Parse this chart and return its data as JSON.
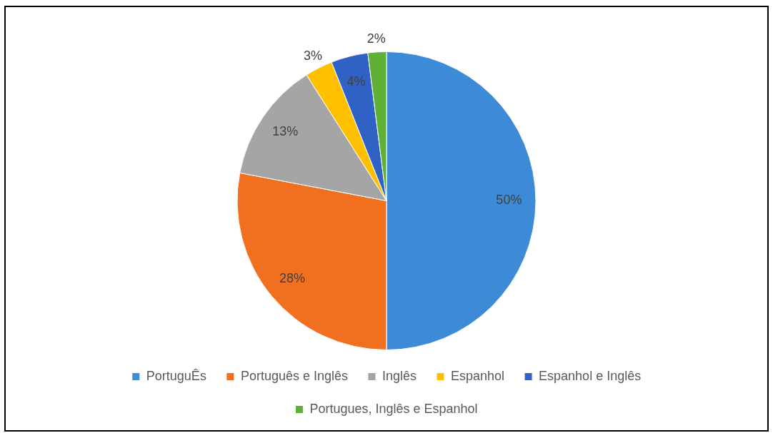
{
  "chart_data": {
    "type": "pie",
    "categories": [
      "PortuguÊs",
      "Português e Inglês",
      "Inglês",
      "Espanhol",
      "Espanhol e Inglês",
      "Portugues, Inglês e Espanhol"
    ],
    "values": [
      50,
      28,
      13,
      3,
      4,
      2
    ],
    "colors": [
      "#3d8ad6",
      "#f07020",
      "#a5a5a5",
      "#ffc000",
      "#2f62c4",
      "#5fb034"
    ],
    "value_labels": [
      "50%",
      "28%",
      "13%",
      "3%",
      "4%",
      "2%"
    ],
    "legend": "bottom"
  }
}
